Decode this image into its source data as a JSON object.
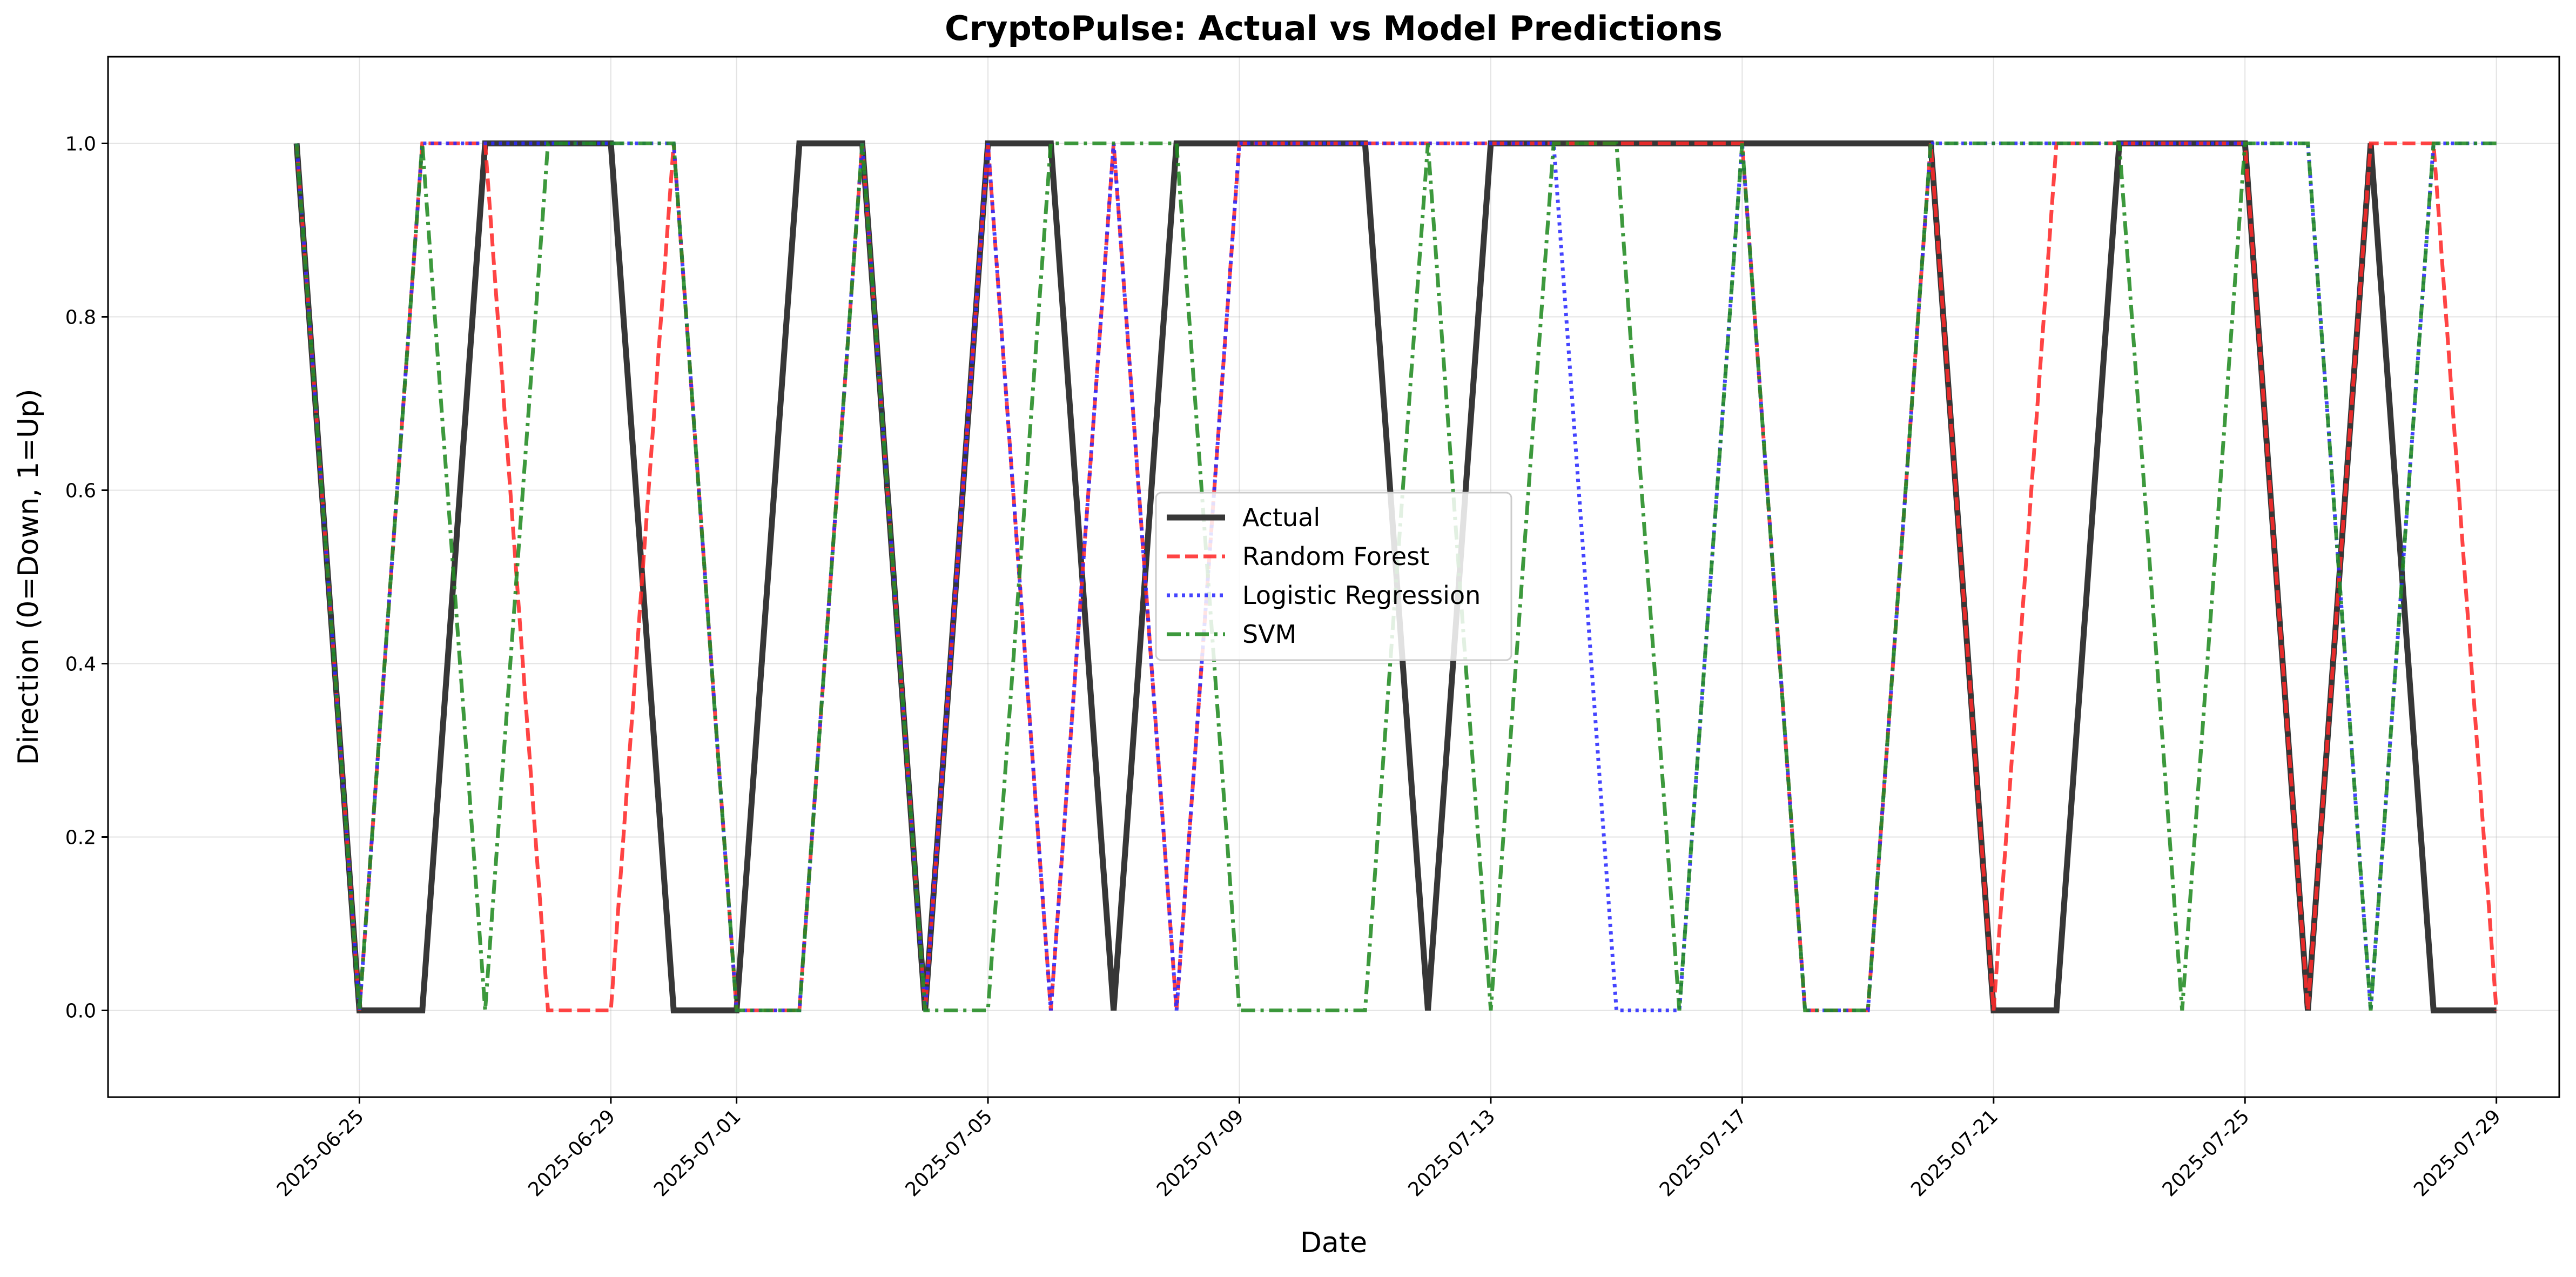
{
  "chart_data": {
    "type": "line",
    "title": "CryptoPulse: Actual vs Model Predictions",
    "xlabel": "Date",
    "ylabel": "Direction (0=Down, 1=Up)",
    "ylim": [
      -0.1,
      1.1
    ],
    "xlim": [
      "2025-06-21",
      "2025-07-30"
    ],
    "yticks": [
      "0.0",
      "0.2",
      "0.4",
      "0.6",
      "0.8",
      "1.0"
    ],
    "xticks": [
      "2025-06-25",
      "2025-06-29",
      "2025-07-01",
      "2025-07-05",
      "2025-07-09",
      "2025-07-13",
      "2025-07-17",
      "2025-07-21",
      "2025-07-25",
      "2025-07-29"
    ],
    "grid": true,
    "legend_position": "center",
    "x": [
      "2025-06-24",
      "2025-06-25",
      "2025-06-26",
      "2025-06-27",
      "2025-06-28",
      "2025-06-29",
      "2025-06-30",
      "2025-07-01",
      "2025-07-02",
      "2025-07-03",
      "2025-07-04",
      "2025-07-05",
      "2025-07-06",
      "2025-07-07",
      "2025-07-08",
      "2025-07-09",
      "2025-07-10",
      "2025-07-11",
      "2025-07-12",
      "2025-07-13",
      "2025-07-14",
      "2025-07-15",
      "2025-07-16",
      "2025-07-17",
      "2025-07-18",
      "2025-07-19",
      "2025-07-20",
      "2025-07-21",
      "2025-07-22",
      "2025-07-23",
      "2025-07-24",
      "2025-07-25",
      "2025-07-26",
      "2025-07-27",
      "2025-07-28",
      "2025-07-29"
    ],
    "series": [
      {
        "name": "Actual",
        "color": "#333333",
        "style": "solid",
        "values": [
          1,
          0,
          0,
          1,
          1,
          1,
          0,
          0,
          1,
          1,
          0,
          1,
          1,
          0,
          1,
          1,
          1,
          1,
          0,
          1,
          1,
          1,
          1,
          1,
          1,
          1,
          1,
          0,
          0,
          1,
          1,
          1,
          0,
          1,
          0,
          0
        ]
      },
      {
        "name": "Random Forest",
        "color": "#ff2a2a",
        "style": "dashed",
        "values": [
          1,
          0,
          1,
          1,
          0,
          0,
          1,
          0,
          0,
          1,
          0,
          1,
          0,
          1,
          0,
          1,
          1,
          1,
          1,
          1,
          1,
          1,
          1,
          1,
          0,
          0,
          1,
          0,
          1,
          1,
          1,
          1,
          0,
          1,
          1,
          0
        ]
      },
      {
        "name": "Logistic Regression",
        "color": "#2a2aff",
        "style": "dotted",
        "values": [
          1,
          0,
          1,
          1,
          1,
          1,
          1,
          0,
          0,
          1,
          0,
          1,
          0,
          1,
          0,
          1,
          1,
          1,
          1,
          1,
          1,
          0,
          0,
          1,
          0,
          0,
          1,
          1,
          1,
          1,
          1,
          1,
          1,
          0,
          1,
          1
        ]
      },
      {
        "name": "SVM",
        "color": "#228b22",
        "style": "dashdot",
        "values": [
          1,
          0,
          1,
          0,
          1,
          1,
          1,
          0,
          0,
          1,
          0,
          0,
          1,
          1,
          1,
          0,
          0,
          0,
          1,
          0,
          1,
          1,
          0,
          1,
          0,
          0,
          1,
          1,
          1,
          1,
          0,
          1,
          1,
          0,
          1,
          1
        ]
      }
    ]
  }
}
